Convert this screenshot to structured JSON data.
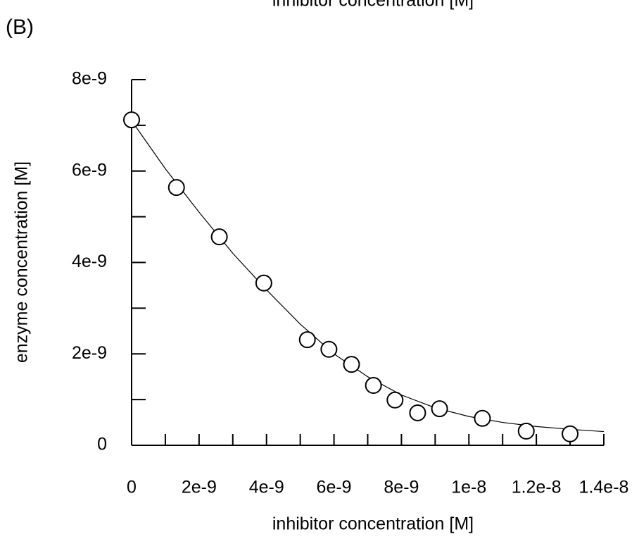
{
  "chart_data": {
    "type": "scatter",
    "panel_label": "(B)",
    "cut_off_text": "inhibitor concentration [M]",
    "x_label": "inhibitor concentration [M]",
    "y_label": "enzyme concentration [M]",
    "xlim": [
      0,
      1.4e-08
    ],
    "ylim": [
      0,
      8e-09
    ],
    "xticks": [
      0,
      2e-09,
      4e-09,
      6e-09,
      8e-09,
      1e-08,
      1.2e-08,
      1.4e-08
    ],
    "yticks": [
      0,
      2e-09,
      4e-09,
      6e-09,
      8e-09
    ],
    "xticks_minor": [
      1e-09,
      3e-09,
      5e-09,
      7e-09,
      9e-09,
      1.1e-08,
      1.3e-08
    ],
    "yticks_minor": [
      1e-09,
      3e-09,
      5e-09,
      7e-09
    ],
    "points": {
      "x": [
        0,
        1.33e-09,
        2.6e-09,
        3.92e-09,
        5.21e-09,
        5.85e-09,
        6.52e-09,
        7.17e-09,
        7.81e-09,
        8.48e-09,
        9.13e-09,
        1.04e-08,
        1.17e-08,
        1.3e-08
      ],
      "values": [
        7.12e-09,
        5.64e-09,
        4.56e-09,
        3.55e-09,
        2.31e-09,
        2.1e-09,
        1.77e-09,
        1.31e-09,
        9.9e-10,
        7.1e-10,
        8e-10,
        5.9e-10,
        3.1e-10,
        2.5e-10
      ]
    },
    "fit": {
      "x": [
        0,
        1e-09,
        2e-09,
        3e-09,
        4e-09,
        5e-09,
        6e-09,
        7e-09,
        8e-09,
        9e-09,
        1e-08,
        1.1e-08,
        1.2e-08,
        1.3e-08,
        1.4e-08
      ],
      "values": [
        7.1e-09,
        6.05e-09,
        5.1e-09,
        4.2e-09,
        3.4e-09,
        2.65e-09,
        2e-09,
        1.5e-09,
        1.1e-09,
        8.2e-10,
        6.3e-10,
        5e-10,
        4.1e-10,
        3.5e-10,
        3e-10
      ]
    }
  }
}
